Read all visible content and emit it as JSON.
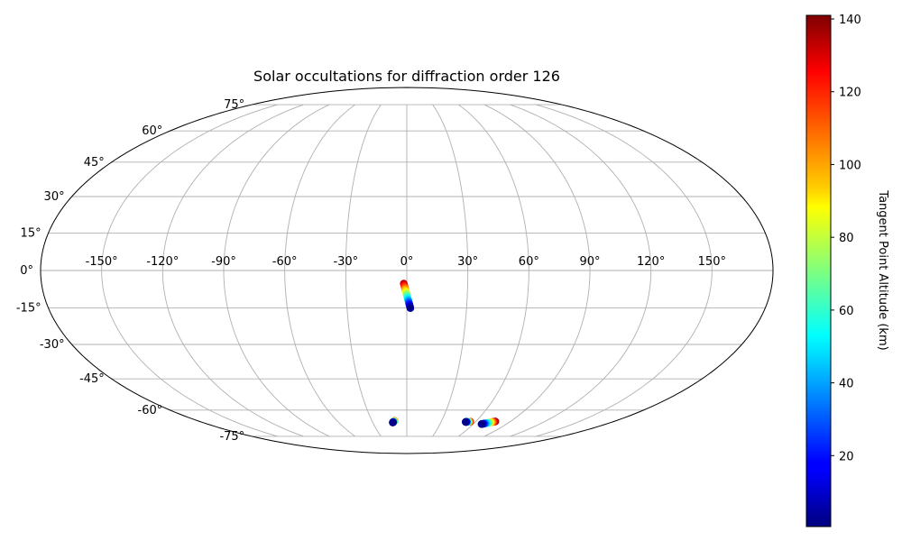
{
  "chart_data": {
    "type": "scatter",
    "projection": "mollweide",
    "title": "Solar occultations for diffraction order 126",
    "grid": true,
    "lon_ticks": [
      {
        "value": -150,
        "label": "-150°"
      },
      {
        "value": -120,
        "label": "-120°"
      },
      {
        "value": -90,
        "label": "-90°"
      },
      {
        "value": -60,
        "label": "-60°"
      },
      {
        "value": -30,
        "label": "-30°"
      },
      {
        "value": 0,
        "label": "0°"
      },
      {
        "value": 30,
        "label": "30°"
      },
      {
        "value": 60,
        "label": "60°"
      },
      {
        "value": 90,
        "label": "90°"
      },
      {
        "value": 120,
        "label": "120°"
      },
      {
        "value": 150,
        "label": "150°"
      }
    ],
    "lat_ticks": [
      {
        "value": 75,
        "label": "75°"
      },
      {
        "value": 60,
        "label": "60°"
      },
      {
        "value": 45,
        "label": "45°"
      },
      {
        "value": 30,
        "label": "30°"
      },
      {
        "value": 15,
        "label": "15°"
      },
      {
        "value": 0,
        "label": "0°"
      },
      {
        "value": -15,
        "label": "-15°"
      },
      {
        "value": -30,
        "label": "-30°"
      },
      {
        "value": -45,
        "label": "-45°"
      },
      {
        "value": -60,
        "label": "-60°"
      },
      {
        "value": -75,
        "label": "-75°"
      }
    ],
    "colorbar": {
      "label": "Tangent Point Altitude (km)",
      "colormap": "jet",
      "vmin": 0.5,
      "vmax": 141,
      "ticks": [
        {
          "value": 20,
          "label": "20"
        },
        {
          "value": 40,
          "label": "40"
        },
        {
          "value": 60,
          "label": "60"
        },
        {
          "value": 80,
          "label": "80"
        },
        {
          "value": 100,
          "label": "100"
        },
        {
          "value": 120,
          "label": "120"
        },
        {
          "value": 140,
          "label": "140"
        }
      ]
    },
    "series": [
      {
        "lon_start": -1.5,
        "lat_start": -5.2,
        "lon_end": 1.8,
        "lat_end": -15.1,
        "alt_start": 135,
        "alt_end": 2
      },
      {
        "lon_start": -10.6,
        "lat_start": -65.8,
        "lon_end": -12.4,
        "lat_end": -66.7,
        "alt_start": 120,
        "alt_end": 2
      },
      {
        "lon_start": 55.2,
        "lat_start": -66.2,
        "lon_end": 51.5,
        "lat_end": -66.4,
        "alt_start": 135,
        "alt_end": 2
      },
      {
        "lon_start": 77.0,
        "lat_start": -66.1,
        "lon_end": 67.5,
        "lat_end": -67.6,
        "alt_start": 140,
        "alt_end": 2
      }
    ]
  }
}
